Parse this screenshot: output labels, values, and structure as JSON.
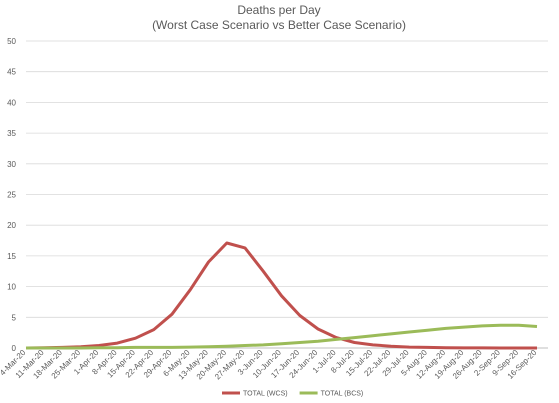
{
  "chart_data": {
    "type": "line",
    "title": "Deaths per Day",
    "subtitle": "(Worst Case Scenario vs Better Case Scenario)",
    "categories": [
      "4-Mar-20",
      "11-Mar-20",
      "18-Mar-20",
      "25-Mar-20",
      "1-Apr-20",
      "8-Apr-20",
      "15-Apr-20",
      "22-Apr-20",
      "29-Apr-20",
      "6-May-20",
      "13-May-20",
      "20-May-20",
      "27-May-20",
      "3-Jun-20",
      "10-Jun-20",
      "17-Jun-20",
      "24-Jun-20",
      "1-Jul-20",
      "8-Jul-20",
      "15-Jul-20",
      "22-Jul-20",
      "29-Jul-20",
      "5-Aug-20",
      "12-Aug-20",
      "19-Aug-20",
      "26-Aug-20",
      "2-Sep-20",
      "9-Sep-20",
      "16-Sep-20"
    ],
    "series": [
      {
        "name": "TOTAL (WCS)",
        "color": "#c0504d",
        "values": [
          0,
          0.05,
          0.1,
          0.2,
          0.4,
          0.8,
          1.6,
          3,
          5.5,
          9.5,
          14,
          17.1,
          16.3,
          12.5,
          8.5,
          5.3,
          3.1,
          1.7,
          0.9,
          0.5,
          0.3,
          0.15,
          0.1,
          0.05,
          0.02,
          0.01,
          0,
          0,
          0
        ]
      },
      {
        "name": "TOTAL (BCS)",
        "color": "#9bbb59",
        "values": [
          0,
          0,
          0,
          0,
          0.05,
          0.05,
          0.1,
          0.1,
          0.1,
          0.15,
          0.2,
          0.3,
          0.4,
          0.5,
          0.7,
          0.9,
          1.1,
          1.4,
          1.7,
          2,
          2.3,
          2.6,
          2.9,
          3.2,
          3.4,
          3.6,
          3.7,
          3.7,
          3.5
        ]
      }
    ],
    "ylim": [
      0,
      50
    ],
    "yticks": [
      0,
      5,
      10,
      15,
      20,
      25,
      30,
      35,
      40,
      45,
      50
    ],
    "grid": true,
    "legend": "bottom"
  }
}
